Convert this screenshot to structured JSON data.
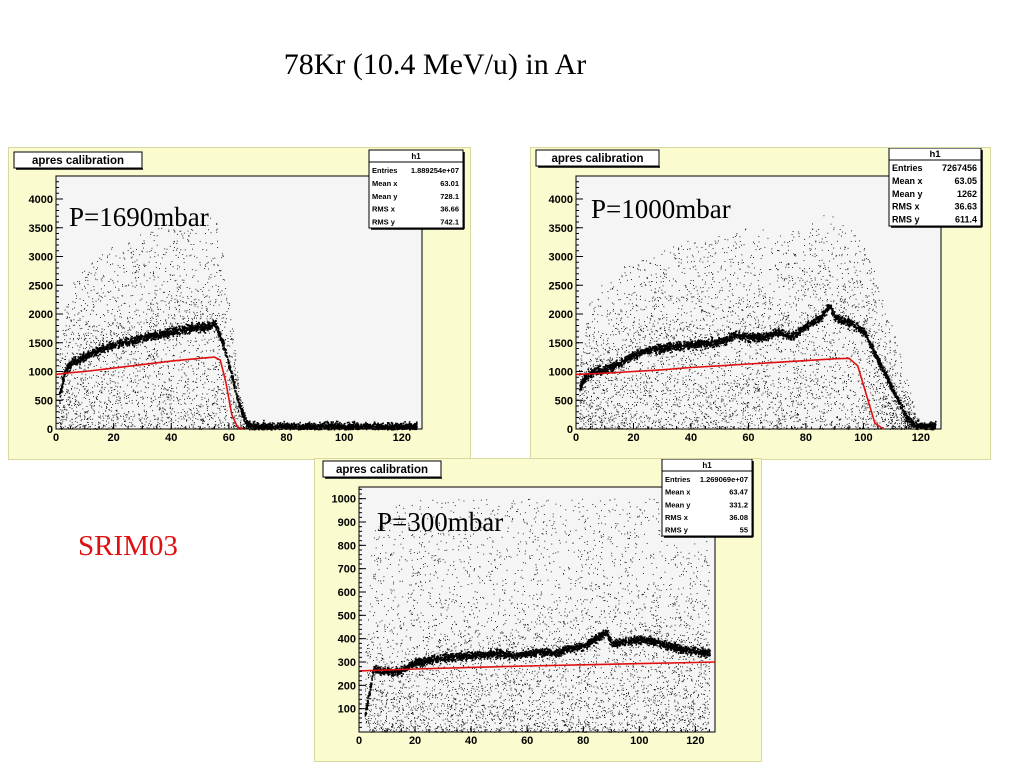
{
  "slide": {
    "title": "78Kr (10.4 MeV/u) in Ar",
    "side_label": "SRIM03",
    "side_label_color": "#e01010"
  },
  "colors": {
    "panel_bg": "#fbfbd0",
    "plot_bg": "#f5f5f5",
    "scatter": "#000000",
    "srim_curve": "#e01010"
  },
  "chart_data": [
    {
      "type": "scatter",
      "title": "apres calibration",
      "annotation": "P=1690mbar",
      "stats_box": {
        "name": "h1",
        "rows": [
          {
            "label": "Entries",
            "value": "1.889254e+07"
          },
          {
            "label": "Mean x",
            "value": "63.01"
          },
          {
            "label": "Mean y",
            "value": "728.1"
          },
          {
            "label": "RMS x",
            "value": "36.66"
          },
          {
            "label": "RMS y",
            "value": "742.1"
          }
        ]
      },
      "xlim": [
        0,
        127
      ],
      "ylim": [
        0,
        4400
      ],
      "xticks": [
        0,
        20,
        40,
        60,
        80,
        100,
        120
      ],
      "yticks": [
        0,
        500,
        1000,
        1500,
        2000,
        2500,
        3000,
        3500,
        4000
      ],
      "series": [
        {
          "kind": "band",
          "x": [
            1,
            3,
            5,
            10,
            15,
            20,
            25,
            30,
            35,
            40,
            45,
            50,
            53,
            55,
            57,
            58,
            60,
            62,
            64,
            66,
            68,
            70,
            80,
            90,
            100,
            110,
            120,
            125
          ],
          "y": [
            600,
            1000,
            1150,
            1280,
            1380,
            1480,
            1530,
            1600,
            1650,
            1700,
            1760,
            1780,
            1800,
            1850,
            1600,
            1450,
            1100,
            700,
            350,
            100,
            60,
            50,
            50,
            50,
            50,
            50,
            50,
            50
          ],
          "upper": [
            1200,
            2200,
            2500,
            2800,
            3000,
            3200,
            3300,
            3400,
            3500,
            3600,
            3650,
            3600,
            3700,
            3750,
            3400,
            3000,
            2500,
            1500,
            600,
            200,
            80,
            60,
            60,
            60,
            60,
            60,
            60,
            60
          ],
          "lower": [
            0,
            0,
            0,
            0,
            0,
            0,
            0,
            0,
            0,
            0,
            0,
            0,
            0,
            0,
            0,
            0,
            0,
            0,
            0,
            0,
            40,
            40,
            40,
            40,
            40,
            40,
            40,
            40
          ]
        },
        {
          "kind": "line",
          "x": [
            0,
            5,
            10,
            20,
            30,
            40,
            50,
            55,
            57,
            59,
            61,
            63,
            65
          ],
          "y": [
            950,
            980,
            1000,
            1060,
            1120,
            1180,
            1230,
            1250,
            1200,
            800,
            250,
            30,
            0
          ]
        }
      ]
    },
    {
      "type": "scatter",
      "title": "apres calibration",
      "annotation": "P=1000mbar",
      "stats_box": {
        "name": "h1",
        "rows": [
          {
            "label": "Entries",
            "value": "7267456"
          },
          {
            "label": "Mean x",
            "value": "63.05"
          },
          {
            "label": "Mean y",
            "value": "1262"
          },
          {
            "label": "RMS x",
            "value": "36.63"
          },
          {
            "label": "RMS y",
            "value": "611.4"
          }
        ]
      },
      "xlim": [
        0,
        127
      ],
      "ylim": [
        0,
        4400
      ],
      "xticks": [
        0,
        20,
        40,
        60,
        80,
        100,
        120
      ],
      "yticks": [
        0,
        500,
        1000,
        1500,
        2000,
        2500,
        3000,
        3500,
        4000
      ],
      "series": [
        {
          "kind": "band",
          "x": [
            1,
            3,
            5,
            10,
            15,
            20,
            25,
            30,
            40,
            50,
            55,
            60,
            65,
            70,
            75,
            80,
            85,
            88,
            90,
            95,
            100,
            105,
            110,
            115,
            118,
            120,
            125
          ],
          "y": [
            700,
            900,
            1000,
            1050,
            1150,
            1300,
            1380,
            1420,
            1480,
            1520,
            1650,
            1600,
            1600,
            1700,
            1620,
            1800,
            1950,
            2150,
            1950,
            1850,
            1700,
            1200,
            700,
            200,
            80,
            60,
            60
          ],
          "upper": [
            1000,
            1800,
            2300,
            2600,
            2800,
            2900,
            3000,
            3100,
            3300,
            3400,
            3500,
            3500,
            3500,
            3400,
            3450,
            3500,
            3700,
            3900,
            3800,
            3500,
            3200,
            2600,
            1800,
            900,
            300,
            100,
            80
          ],
          "lower": [
            0,
            0,
            0,
            0,
            0,
            0,
            0,
            0,
            0,
            0,
            0,
            0,
            0,
            0,
            0,
            0,
            0,
            0,
            0,
            0,
            0,
            0,
            0,
            0,
            40,
            40,
            40
          ]
        },
        {
          "kind": "line",
          "x": [
            0,
            10,
            20,
            30,
            40,
            50,
            60,
            70,
            80,
            90,
            95,
            98,
            101,
            104,
            107
          ],
          "y": [
            950,
            970,
            1000,
            1030,
            1070,
            1100,
            1130,
            1160,
            1190,
            1220,
            1230,
            1100,
            600,
            100,
            0
          ]
        }
      ]
    },
    {
      "type": "scatter",
      "title": "apres calibration",
      "annotation": "P=300mbar",
      "stats_box": {
        "name": "h1",
        "rows": [
          {
            "label": "Entries",
            "value": "1.269069e+07"
          },
          {
            "label": "Mean x",
            "value": "63.47"
          },
          {
            "label": "Mean y",
            "value": "331.2"
          },
          {
            "label": "RMS x",
            "value": "36.08"
          },
          {
            "label": "RMS y",
            "value": "55"
          }
        ]
      },
      "xlim": [
        0,
        127
      ],
      "ylim": [
        0,
        1050
      ],
      "xticks": [
        0,
        20,
        40,
        60,
        80,
        100,
        120
      ],
      "yticks": [
        100,
        200,
        300,
        400,
        500,
        600,
        700,
        800,
        900,
        1000
      ],
      "series": [
        {
          "kind": "band",
          "x": [
            2,
            4,
            5,
            10,
            15,
            20,
            25,
            30,
            40,
            50,
            55,
            60,
            65,
            70,
            75,
            80,
            85,
            88,
            90,
            95,
            100,
            105,
            110,
            115,
            120,
            125
          ],
          "y": [
            80,
            200,
            270,
            260,
            265,
            300,
            310,
            320,
            330,
            340,
            330,
            340,
            345,
            340,
            360,
            370,
            410,
            430,
            380,
            390,
            400,
            390,
            370,
            360,
            350,
            340
          ],
          "upper": [
            300,
            700,
            900,
            950,
            980,
            1000,
            1000,
            1000,
            1000,
            1000,
            1000,
            1000,
            1000,
            1000,
            1000,
            1000,
            1000,
            1000,
            1000,
            1000,
            1000,
            1000,
            1000,
            1000,
            1000,
            1000
          ],
          "lower": [
            50,
            0,
            0,
            0,
            0,
            0,
            0,
            0,
            0,
            0,
            0,
            0,
            0,
            0,
            0,
            0,
            0,
            0,
            0,
            0,
            0,
            0,
            0,
            0,
            0,
            0
          ]
        },
        {
          "kind": "line",
          "x": [
            0,
            20,
            40,
            60,
            80,
            100,
            120,
            127
          ],
          "y": [
            262,
            270,
            277,
            283,
            288,
            293,
            298,
            300
          ]
        }
      ]
    }
  ]
}
